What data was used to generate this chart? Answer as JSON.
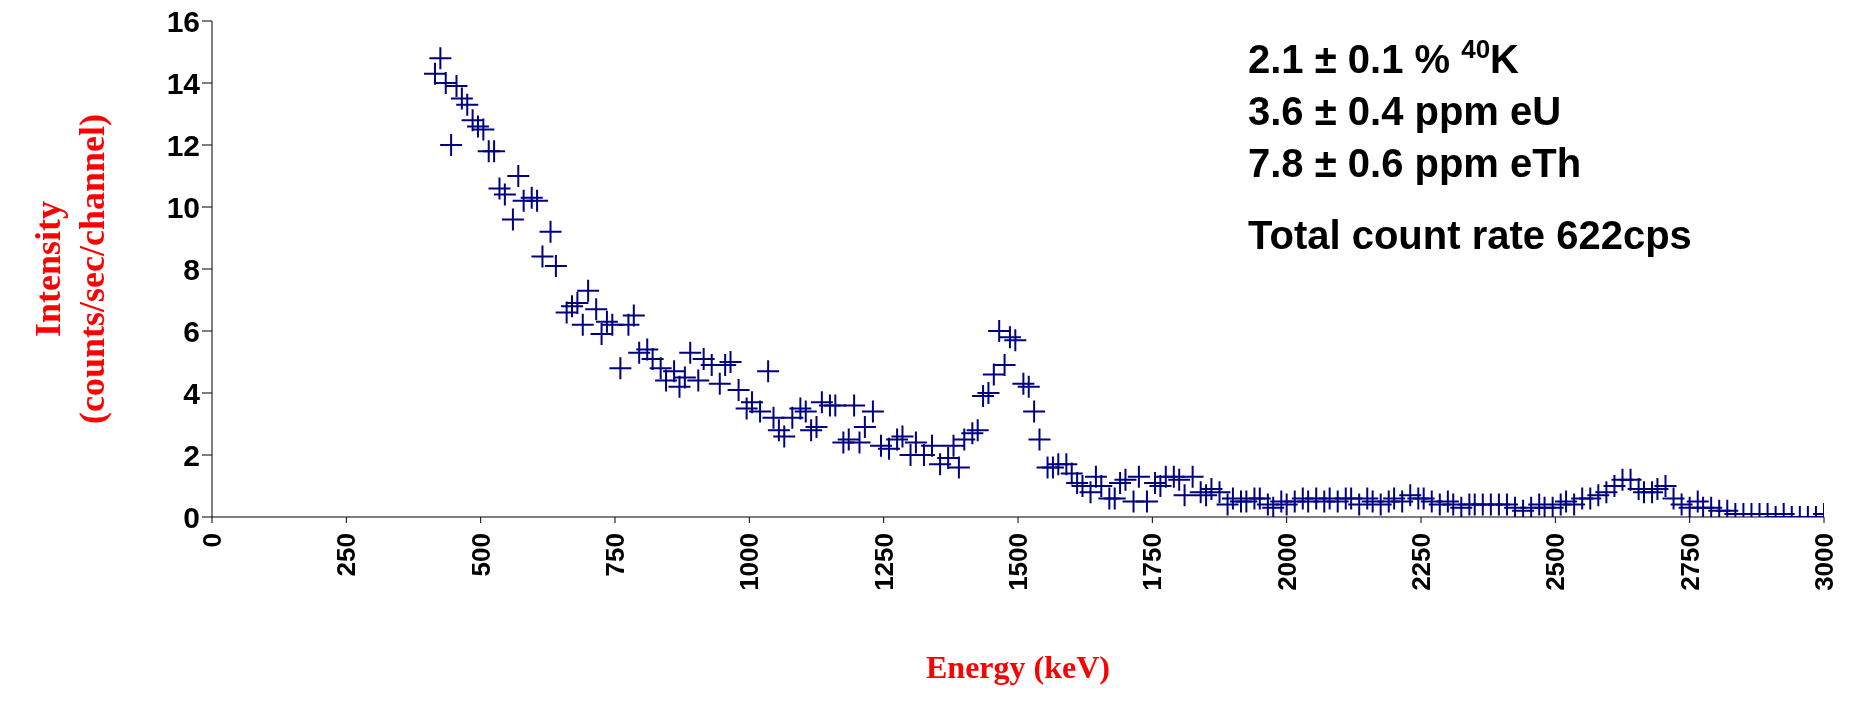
{
  "chart_data": {
    "type": "scatter",
    "xlabel": "Energy (keV)",
    "ylabel": "Intensity\n(counts/sec/channel)",
    "annotations": [
      "2.1 ± 0.1 % $^{40}$K",
      "3.6 ± 0.4 ppm eU",
      "7.8 ± 0.6 ppm eTh",
      "Total count rate 622cps"
    ],
    "xlim": [
      0,
      3000
    ],
    "xticks": [
      0,
      250,
      500,
      750,
      1000,
      1250,
      1500,
      1750,
      2000,
      2250,
      2500,
      2750,
      3000
    ],
    "ylim": [
      0,
      16
    ],
    "yticks": [
      0,
      2,
      4,
      6,
      8,
      10,
      12,
      14,
      16
    ],
    "grid": false,
    "legend": false,
    "marker": "cross",
    "series": [
      {
        "color": "#000080",
        "x": [
          415,
          425,
          435,
          445,
          455,
          465,
          475,
          485,
          495,
          505,
          515,
          525,
          535,
          545,
          560,
          570,
          580,
          595,
          605,
          615,
          630,
          640,
          660,
          670,
          680,
          690,
          700,
          715,
          725,
          735,
          745,
          760,
          775,
          785,
          795,
          810,
          820,
          835,
          845,
          860,
          870,
          880,
          890,
          905,
          915,
          930,
          945,
          955,
          965,
          980,
          995,
          1005,
          1020,
          1035,
          1045,
          1055,
          1065,
          1080,
          1095,
          1105,
          1115,
          1125,
          1135,
          1150,
          1160,
          1175,
          1185,
          1195,
          1205,
          1215,
          1230,
          1245,
          1260,
          1275,
          1285,
          1300,
          1310,
          1325,
          1340,
          1355,
          1370,
          1380,
          1390,
          1400,
          1415,
          1425,
          1435,
          1445,
          1455,
          1465,
          1475,
          1485,
          1495,
          1510,
          1520,
          1530,
          1540,
          1555,
          1565,
          1575,
          1590,
          1600,
          1610,
          1620,
          1635,
          1645,
          1655,
          1670,
          1680,
          1690,
          1700,
          1715,
          1725,
          1740,
          1755,
          1765,
          1775,
          1790,
          1800,
          1810,
          1825,
          1840,
          1850,
          1860,
          1875,
          1890,
          1900,
          1915,
          1925,
          1940,
          1950,
          1965,
          1975,
          1990,
          2000,
          2015,
          2030,
          2040,
          2055,
          2070,
          2080,
          2095,
          2110,
          2120,
          2135,
          2150,
          2160,
          2175,
          2190,
          2200,
          2215,
          2230,
          2245,
          2255,
          2270,
          2285,
          2300,
          2310,
          2325,
          2340,
          2350,
          2365,
          2380,
          2395,
          2410,
          2425,
          2440,
          2455,
          2470,
          2480,
          2495,
          2510,
          2520,
          2535,
          2550,
          2565,
          2580,
          2595,
          2610,
          2625,
          2640,
          2655,
          2665,
          2680,
          2690,
          2705,
          2720,
          2735,
          2750,
          2765,
          2775,
          2790,
          2805,
          2820,
          2835,
          2850,
          2865,
          2880,
          2895,
          2910,
          2925,
          2940,
          2955,
          2970,
          2985,
          3000
        ],
        "values": [
          14.3,
          14.8,
          14.0,
          12.0,
          13.9,
          13.5,
          13.3,
          12.8,
          12.6,
          12.5,
          11.8,
          11.8,
          10.6,
          10.4,
          9.6,
          11.0,
          10.2,
          10.3,
          10.2,
          8.4,
          9.2,
          8.1,
          6.6,
          6.8,
          6.9,
          6.2,
          7.3,
          6.7,
          5.9,
          6.3,
          6.2,
          4.8,
          6.2,
          6.5,
          5.3,
          5.4,
          5.1,
          4.8,
          4.4,
          4.7,
          4.2,
          4.5,
          5.3,
          4.4,
          5.1,
          4.9,
          4.3,
          4.9,
          5.0,
          4.1,
          3.5,
          3.7,
          3.4,
          4.7,
          3.2,
          2.8,
          2.6,
          3.2,
          3.5,
          3.4,
          2.8,
          2.9,
          3.7,
          3.6,
          3.6,
          2.4,
          2.5,
          3.6,
          2.4,
          2.9,
          3.4,
          2.3,
          2.2,
          2.5,
          2.6,
          2.0,
          2.4,
          2.0,
          2.3,
          1.7,
          1.9,
          2.3,
          1.6,
          2.5,
          2.7,
          2.8,
          3.9,
          4.0,
          4.6,
          6.0,
          4.9,
          5.8,
          5.7,
          4.3,
          4.2,
          3.4,
          2.5,
          1.6,
          1.6,
          1.7,
          1.7,
          1.4,
          1.1,
          1.0,
          0.8,
          1.3,
          1.0,
          0.6,
          0.6,
          1.1,
          1.2,
          0.5,
          1.3,
          0.5,
          1.1,
          1.0,
          1.3,
          1.3,
          1.2,
          0.7,
          1.3,
          0.8,
          0.7,
          0.9,
          0.8,
          0.4,
          0.6,
          0.5,
          0.5,
          0.6,
          0.6,
          0.4,
          0.3,
          0.5,
          0.4,
          0.5,
          0.6,
          0.5,
          0.6,
          0.5,
          0.6,
          0.5,
          0.6,
          0.6,
          0.4,
          0.6,
          0.5,
          0.4,
          0.5,
          0.6,
          0.5,
          0.7,
          0.6,
          0.6,
          0.5,
          0.4,
          0.5,
          0.4,
          0.3,
          0.4,
          0.4,
          0.4,
          0.4,
          0.4,
          0.4,
          0.3,
          0.2,
          0.3,
          0.4,
          0.3,
          0.3,
          0.4,
          0.5,
          0.4,
          0.6,
          0.6,
          0.7,
          0.8,
          1.0,
          1.2,
          1.2,
          0.9,
          0.8,
          0.8,
          0.9,
          1.0,
          0.6,
          0.4,
          0.3,
          0.5,
          0.3,
          0.3,
          0.2,
          0.2,
          0.1,
          0.1,
          0.1,
          0.1,
          0.1,
          0.0,
          0.1,
          0.0,
          0.0,
          0.0,
          0.0,
          0.1
        ]
      }
    ]
  }
}
